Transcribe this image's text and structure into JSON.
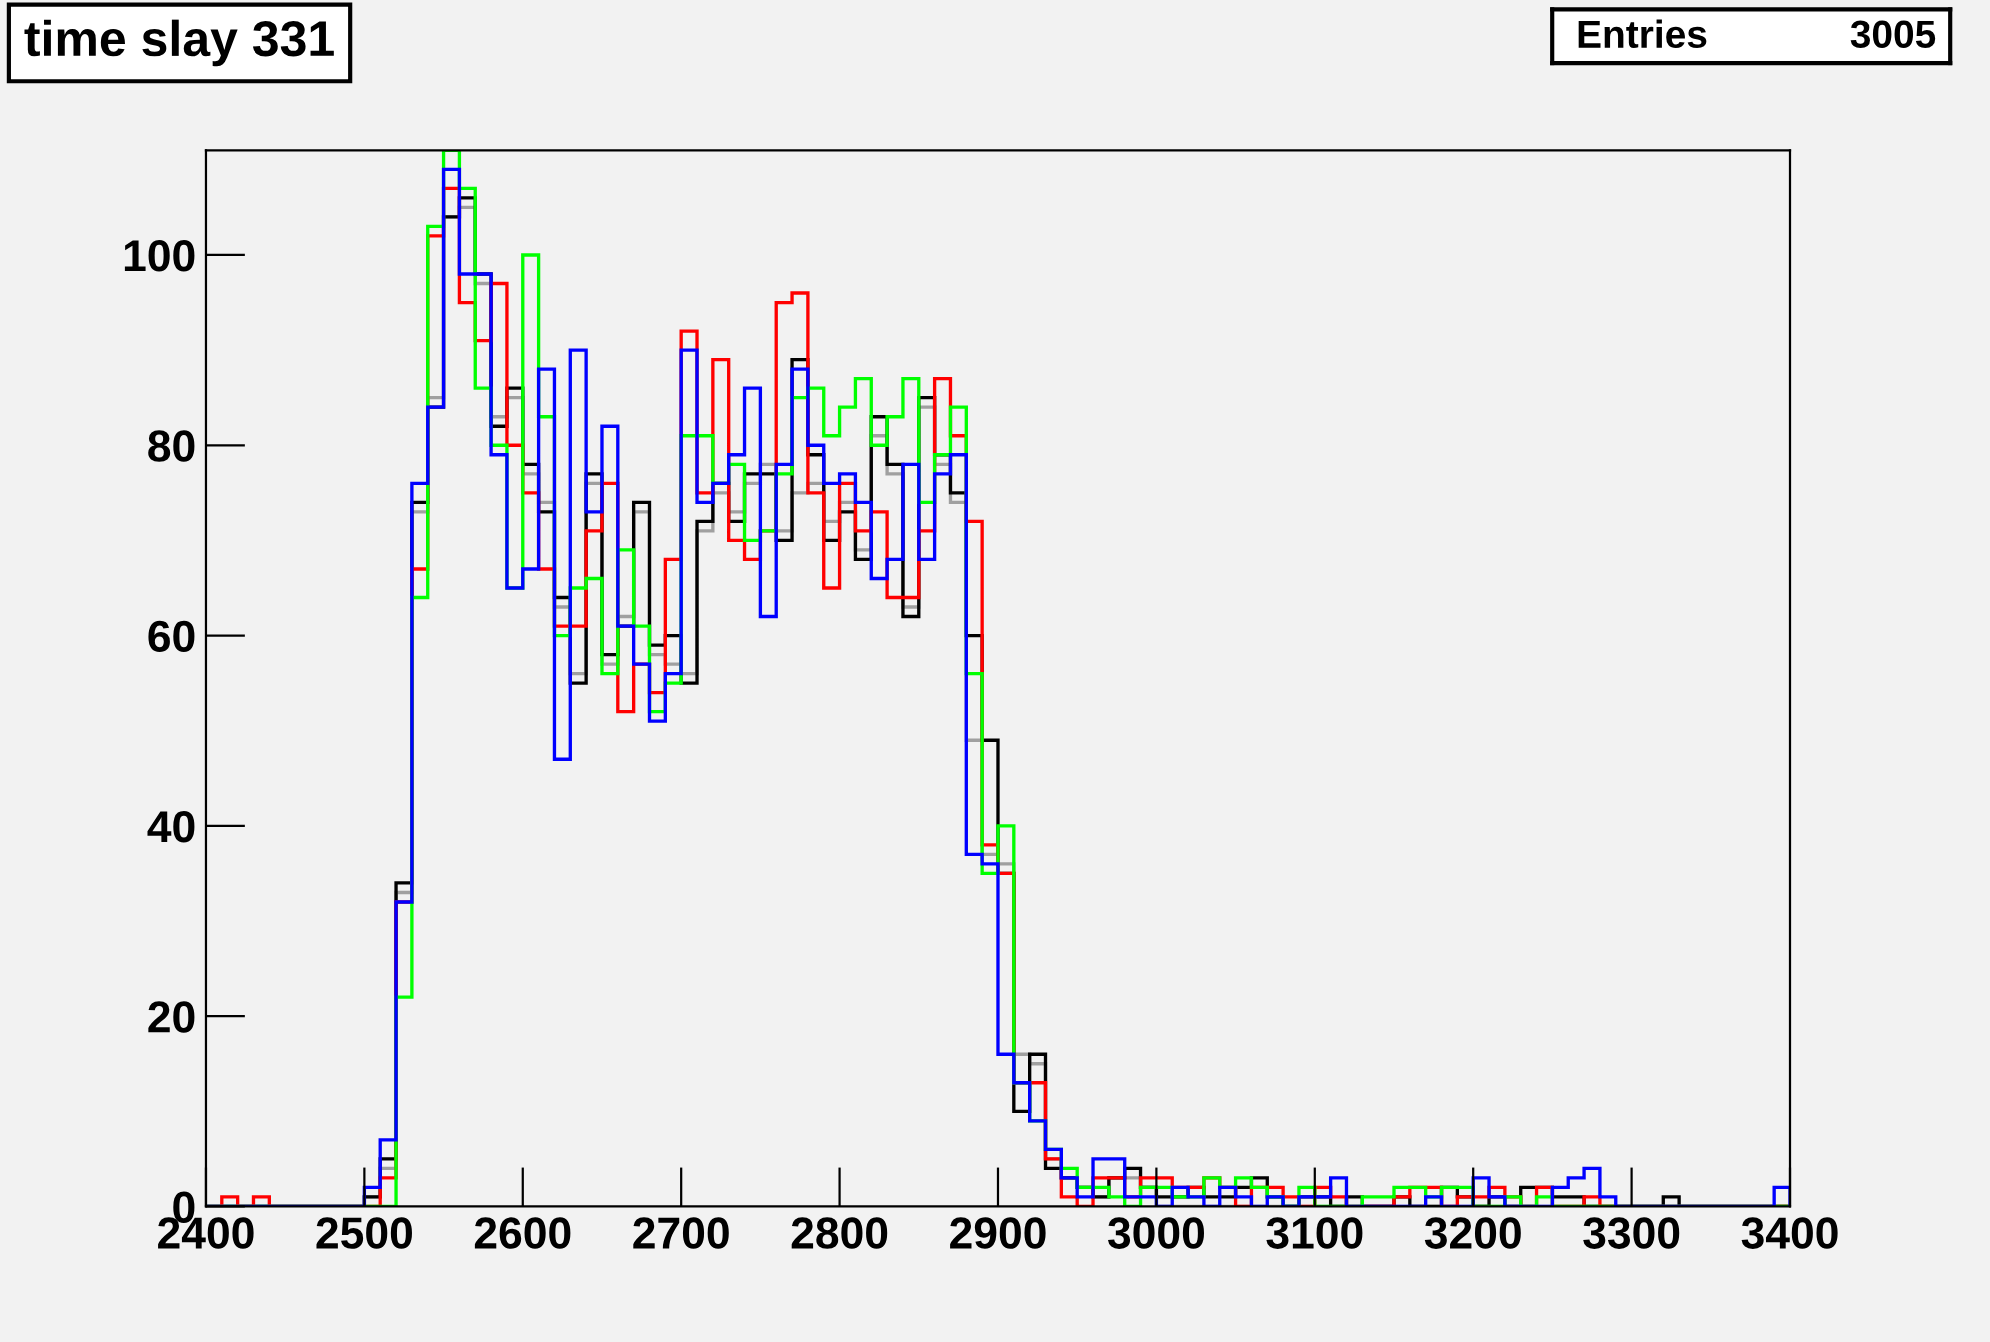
{
  "chart_data": {
    "type": "histogram",
    "title": "time slay 331",
    "annotations": [
      "Entries",
      "3005"
    ],
    "bins": [
      2400,
      2410,
      2420,
      2430,
      2440,
      2450,
      2460,
      2470,
      2480,
      2490,
      2500,
      2510,
      2520,
      2530,
      2540,
      2550,
      2560,
      2570,
      2580,
      2590,
      2600,
      2610,
      2620,
      2630,
      2640,
      2650,
      2660,
      2670,
      2680,
      2690,
      2700,
      2710,
      2720,
      2730,
      2740,
      2750,
      2760,
      2770,
      2780,
      2790,
      2800,
      2810,
      2820,
      2830,
      2840,
      2850,
      2860,
      2870,
      2880,
      2890,
      2900,
      2910,
      2920,
      2930,
      2940,
      2950,
      2960,
      2970,
      2980,
      2990,
      3000,
      3010,
      3020,
      3030,
      3040,
      3050,
      3060,
      3070,
      3080,
      3090,
      3100,
      3110,
      3120,
      3130,
      3140,
      3150,
      3160,
      3170,
      3180,
      3190,
      3200,
      3210,
      3220,
      3230,
      3240,
      3250,
      3260,
      3270,
      3280,
      3290,
      3300,
      3310,
      3320,
      3330,
      3340,
      3350,
      3360,
      3370,
      3380,
      3390,
      3400
    ],
    "series": [
      {
        "color": "#a0a0a0",
        "values": [
          0,
          0,
          0,
          0,
          0,
          0,
          0,
          0,
          0,
          0,
          1,
          4,
          33,
          73,
          85,
          104,
          105,
          97,
          83,
          85,
          77,
          74,
          63,
          56,
          76,
          57,
          62,
          73,
          58,
          57,
          56,
          71,
          75,
          73,
          76,
          78,
          71,
          75,
          76,
          72,
          74,
          69,
          81,
          77,
          63,
          84,
          78,
          74,
          49,
          37,
          36,
          16,
          15,
          5,
          3,
          2,
          1,
          3,
          3,
          2,
          0,
          0,
          0,
          0,
          0,
          0,
          0,
          0,
          0,
          0,
          0,
          0,
          0,
          0,
          0,
          0,
          0,
          0,
          0,
          0,
          0,
          0,
          0,
          0,
          0,
          0,
          0,
          0,
          0,
          0,
          0,
          0,
          0,
          0,
          0,
          0,
          0,
          0,
          0,
          0
        ]
      },
      {
        "color": "#000000",
        "values": [
          0,
          0,
          0,
          0,
          0,
          0,
          0,
          0,
          0,
          0,
          1,
          5,
          34,
          74,
          84,
          104,
          106,
          98,
          82,
          86,
          78,
          73,
          64,
          55,
          77,
          58,
          61,
          74,
          59,
          60,
          55,
          72,
          76,
          72,
          77,
          77,
          70,
          89,
          79,
          70,
          73,
          68,
          83,
          78,
          62,
          85,
          79,
          75,
          60,
          49,
          35,
          10,
          16,
          4,
          3,
          2,
          1,
          3,
          4,
          2,
          1,
          1,
          2,
          1,
          1,
          2,
          3,
          1,
          0,
          1,
          1,
          0,
          1,
          0,
          0,
          1,
          0,
          0,
          2,
          1,
          0,
          1,
          0,
          2,
          2,
          1,
          1,
          0,
          0,
          0,
          0,
          0,
          1,
          0,
          0,
          0,
          0,
          0,
          0,
          0
        ]
      },
      {
        "color": "#ff0000",
        "values": [
          0,
          1,
          0,
          1,
          0,
          0,
          0,
          0,
          0,
          0,
          0,
          3,
          32,
          67,
          102,
          107,
          95,
          91,
          97,
          80,
          75,
          67,
          61,
          61,
          71,
          76,
          52,
          57,
          54,
          68,
          92,
          75,
          89,
          70,
          68,
          71,
          95,
          96,
          75,
          65,
          76,
          71,
          73,
          64,
          64,
          71,
          87,
          81,
          72,
          38,
          35,
          13,
          13,
          5,
          1,
          0,
          3,
          3,
          1,
          3,
          3,
          2,
          2,
          3,
          2,
          0,
          2,
          2,
          1,
          0,
          2,
          1,
          0,
          0,
          0,
          1,
          2,
          2,
          0,
          1,
          1,
          2,
          1,
          0,
          2,
          0,
          0,
          1,
          0,
          0,
          0,
          0,
          0,
          0,
          0,
          0,
          0,
          0,
          0,
          0
        ]
      },
      {
        "color": "#00ff00",
        "values": [
          0,
          0,
          0,
          0,
          0,
          0,
          0,
          0,
          0,
          0,
          0,
          0,
          22,
          64,
          103,
          111,
          107,
          86,
          80,
          65,
          100,
          83,
          60,
          65,
          66,
          56,
          69,
          61,
          52,
          55,
          81,
          81,
          76,
          78,
          70,
          71,
          77,
          85,
          86,
          81,
          84,
          87,
          80,
          83,
          87,
          74,
          79,
          84,
          56,
          35,
          40,
          13,
          9,
          6,
          4,
          2,
          2,
          1,
          0,
          2,
          2,
          1,
          1,
          3,
          2,
          3,
          2,
          1,
          0,
          2,
          0,
          0,
          0,
          1,
          1,
          2,
          2,
          1,
          2,
          2,
          0,
          0,
          1,
          0,
          1,
          0,
          0,
          0,
          0,
          0,
          0,
          0,
          0,
          0,
          0,
          0,
          0,
          0,
          0,
          0
        ]
      },
      {
        "color": "#0000ff",
        "values": [
          0,
          0,
          0,
          0,
          0,
          0,
          0,
          0,
          0,
          0,
          2,
          7,
          32,
          76,
          84,
          109,
          98,
          98,
          79,
          65,
          67,
          88,
          47,
          90,
          73,
          82,
          61,
          57,
          51,
          56,
          90,
          74,
          76,
          79,
          86,
          62,
          78,
          88,
          80,
          76,
          77,
          74,
          66,
          68,
          78,
          68,
          77,
          79,
          37,
          36,
          16,
          13,
          9,
          6,
          3,
          1,
          5,
          5,
          1,
          1,
          0,
          2,
          1,
          0,
          2,
          1,
          0,
          1,
          0,
          1,
          1,
          3,
          0,
          0,
          0,
          0,
          0,
          1,
          0,
          0,
          3,
          1,
          0,
          0,
          0,
          2,
          3,
          4,
          1,
          0,
          0,
          0,
          0,
          0,
          0,
          0,
          0,
          0,
          0,
          2
        ]
      }
    ],
    "xlim": [
      2400,
      3400
    ],
    "xticks": [
      2400,
      2500,
      2600,
      2700,
      2800,
      2900,
      3000,
      3100,
      3200,
      3300,
      3400
    ],
    "ylim": [
      0,
      111
    ],
    "yticks": [
      0,
      20,
      40,
      60,
      80,
      100
    ],
    "grid": false,
    "legend": false
  }
}
